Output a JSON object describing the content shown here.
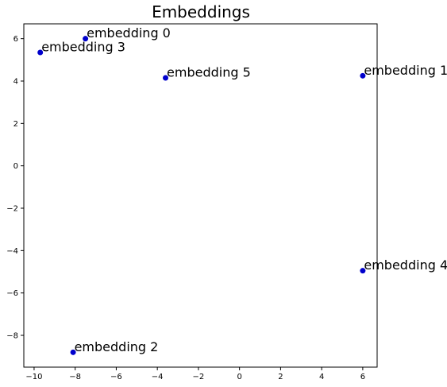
{
  "chart_data": {
    "type": "scatter",
    "title": "Embeddings",
    "xlabel": "",
    "ylabel": "",
    "xlim": [
      -10.5,
      6.7
    ],
    "ylim": [
      -9.5,
      6.7
    ],
    "xticks": [
      -10,
      -8,
      -6,
      -4,
      -2,
      0,
      2,
      4,
      6
    ],
    "yticks": [
      -8,
      -6,
      -4,
      -2,
      0,
      2,
      4,
      6
    ],
    "xtick_labels": [
      "−10",
      "−8",
      "−6",
      "−4",
      "−2",
      "0",
      "2",
      "4",
      "6"
    ],
    "ytick_labels": [
      "−8",
      "−6",
      "−4",
      "−2",
      "0",
      "2",
      "4",
      "6"
    ],
    "grid": false,
    "marker_color": "#0000cc",
    "points": [
      {
        "label": "embedding 0",
        "x": -7.5,
        "y": 6.0
      },
      {
        "label": "embedding 1",
        "x": 6.0,
        "y": 4.25
      },
      {
        "label": "embedding 2",
        "x": -8.1,
        "y": -8.8
      },
      {
        "label": "embedding 3",
        "x": -9.7,
        "y": 5.35
      },
      {
        "label": "embedding 4",
        "x": 6.0,
        "y": -4.95
      },
      {
        "label": "embedding 5",
        "x": -3.6,
        "y": 4.15
      }
    ]
  }
}
